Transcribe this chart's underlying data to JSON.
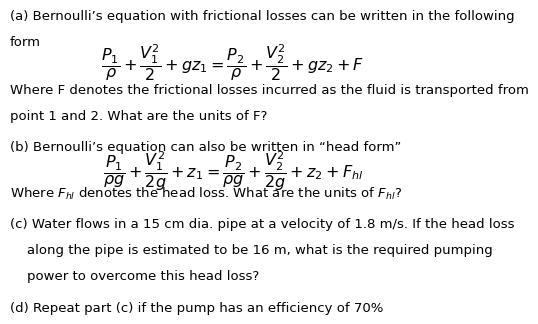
{
  "bg_color": "#ffffff",
  "text_color": "#000000",
  "line_a1": "(a) Bernoulli’s equation with frictional losses can be written in the following",
  "line_a2": "form",
  "eq1": "$\\dfrac{P_1}{\\rho}+\\dfrac{V_1^2}{2}+gz_1=\\dfrac{P_2}{\\rho}+\\dfrac{V_2^2}{2}+gz_2+F$",
  "line_a3": "Where F denotes the frictional losses incurred as the fluid is transported from",
  "line_a4": "point 1 and 2. What are the units of F?",
  "line_b1": "(b) Bernoulli’s equation can also be written in “head form”",
  "eq2": "$\\dfrac{P_1}{\\rho g}+\\dfrac{V_1^2}{2g}+z_1=\\dfrac{P_2}{\\rho g}+\\dfrac{V_2^2}{2g}+z_2+F_{hl}$",
  "line_b2": "Where $F_{hl}$ denotes the head loss. What are the units of $F_{hl}$?",
  "line_c1": "(c) Water flows in a 15 cm dia. pipe at a velocity of 1.8 m/s. If the head loss",
  "line_c2": "    along the pipe is estimated to be 16 m, what is the required pumping",
  "line_c3": "    power to overcome this head loss?",
  "line_d1": "(d) Repeat part (c) if the pump has an efficiency of 70%",
  "font_size_text": 9.5,
  "font_size_eq": 11.5
}
